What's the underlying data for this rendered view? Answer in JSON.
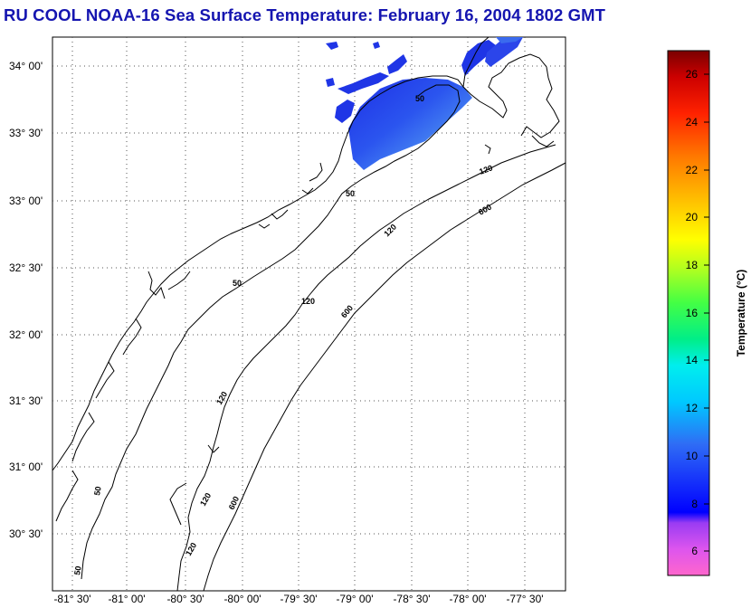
{
  "title": "RU COOL  NOAA-16  Sea Surface Temperature:  February 16, 2004 1802 GMT",
  "map": {
    "lat_labels": [
      "34° 00'",
      "33° 30'",
      "33° 00'",
      "32° 30'",
      "32° 00'",
      "31° 30'",
      "31° 00'",
      "30° 30'"
    ],
    "lon_labels": [
      "-81° 30'",
      "-81° 00'",
      "-80° 30'",
      "-80° 00'",
      "-79° 30'",
      "-79° 00'",
      "-78° 30'",
      "-78° 00'",
      "-77° 30'"
    ],
    "contour_labels": {
      "c50": "50",
      "c120": "120",
      "c600": "600"
    },
    "sst_colors": {
      "deep": "#1f35e6",
      "mid": "#3f6cf0",
      "light": "#5aa7f2",
      "cyan": "#6fd8f5"
    }
  },
  "colorbar": {
    "label": "Temperature (°C)",
    "ticks": [
      "26",
      "24",
      "22",
      "20",
      "18",
      "16",
      "14",
      "12",
      "10",
      "8",
      "6"
    ],
    "range": [
      5,
      27
    ]
  }
}
